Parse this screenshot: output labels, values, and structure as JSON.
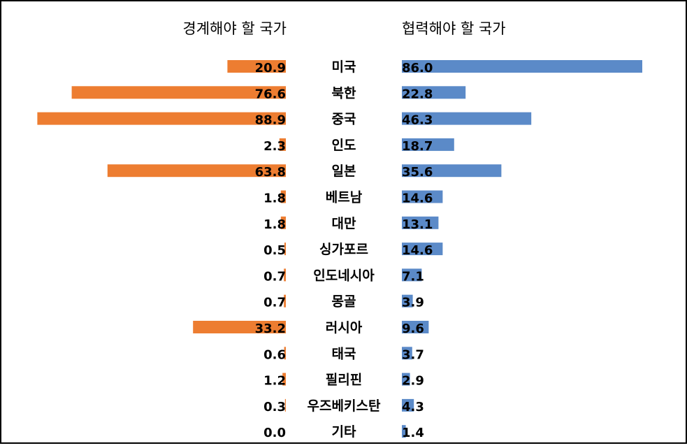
{
  "chart_data": {
    "type": "bar",
    "layout": "butterfly",
    "categories": [
      "미국",
      "북한",
      "중국",
      "인도",
      "일본",
      "베트남",
      "대만",
      "싱가포르",
      "인도네시아",
      "몽골",
      "러시아",
      "태국",
      "필리핀",
      "우즈베키스탄",
      "기타"
    ],
    "series": [
      {
        "name": "경계해야 할 국가",
        "side": "left",
        "color": "#ED7D31",
        "values": [
          20.9,
          76.6,
          88.9,
          2.3,
          63.8,
          1.8,
          1.8,
          0.5,
          0.7,
          0.7,
          33.2,
          0.6,
          1.2,
          0.3,
          0.0
        ],
        "labels": [
          "20.9",
          "76.6",
          "88.9",
          "2.3",
          "63.8",
          "1.8",
          "1.8",
          "0.5",
          "0.7",
          "0.7",
          "33.2",
          "0.6",
          "1.2",
          "0.3",
          "0.0"
        ]
      },
      {
        "name": "협력해야 할 국가",
        "side": "right",
        "color": "#5B8AC8",
        "values": [
          86.0,
          22.8,
          46.3,
          18.7,
          35.6,
          14.6,
          13.1,
          14.6,
          7.1,
          3.9,
          9.6,
          3.7,
          2.9,
          4.3,
          1.4
        ],
        "labels": [
          "86.0",
          "22.8",
          "46.3",
          "18.7",
          "35.6",
          "14.6",
          "13.1",
          "14.6",
          "7.1",
          "3.9",
          "9.6",
          "3.7",
          "2.9",
          "4.3",
          "1.4"
        ]
      }
    ],
    "xlim": [
      0,
      100
    ],
    "grid": false,
    "legend": "none"
  }
}
